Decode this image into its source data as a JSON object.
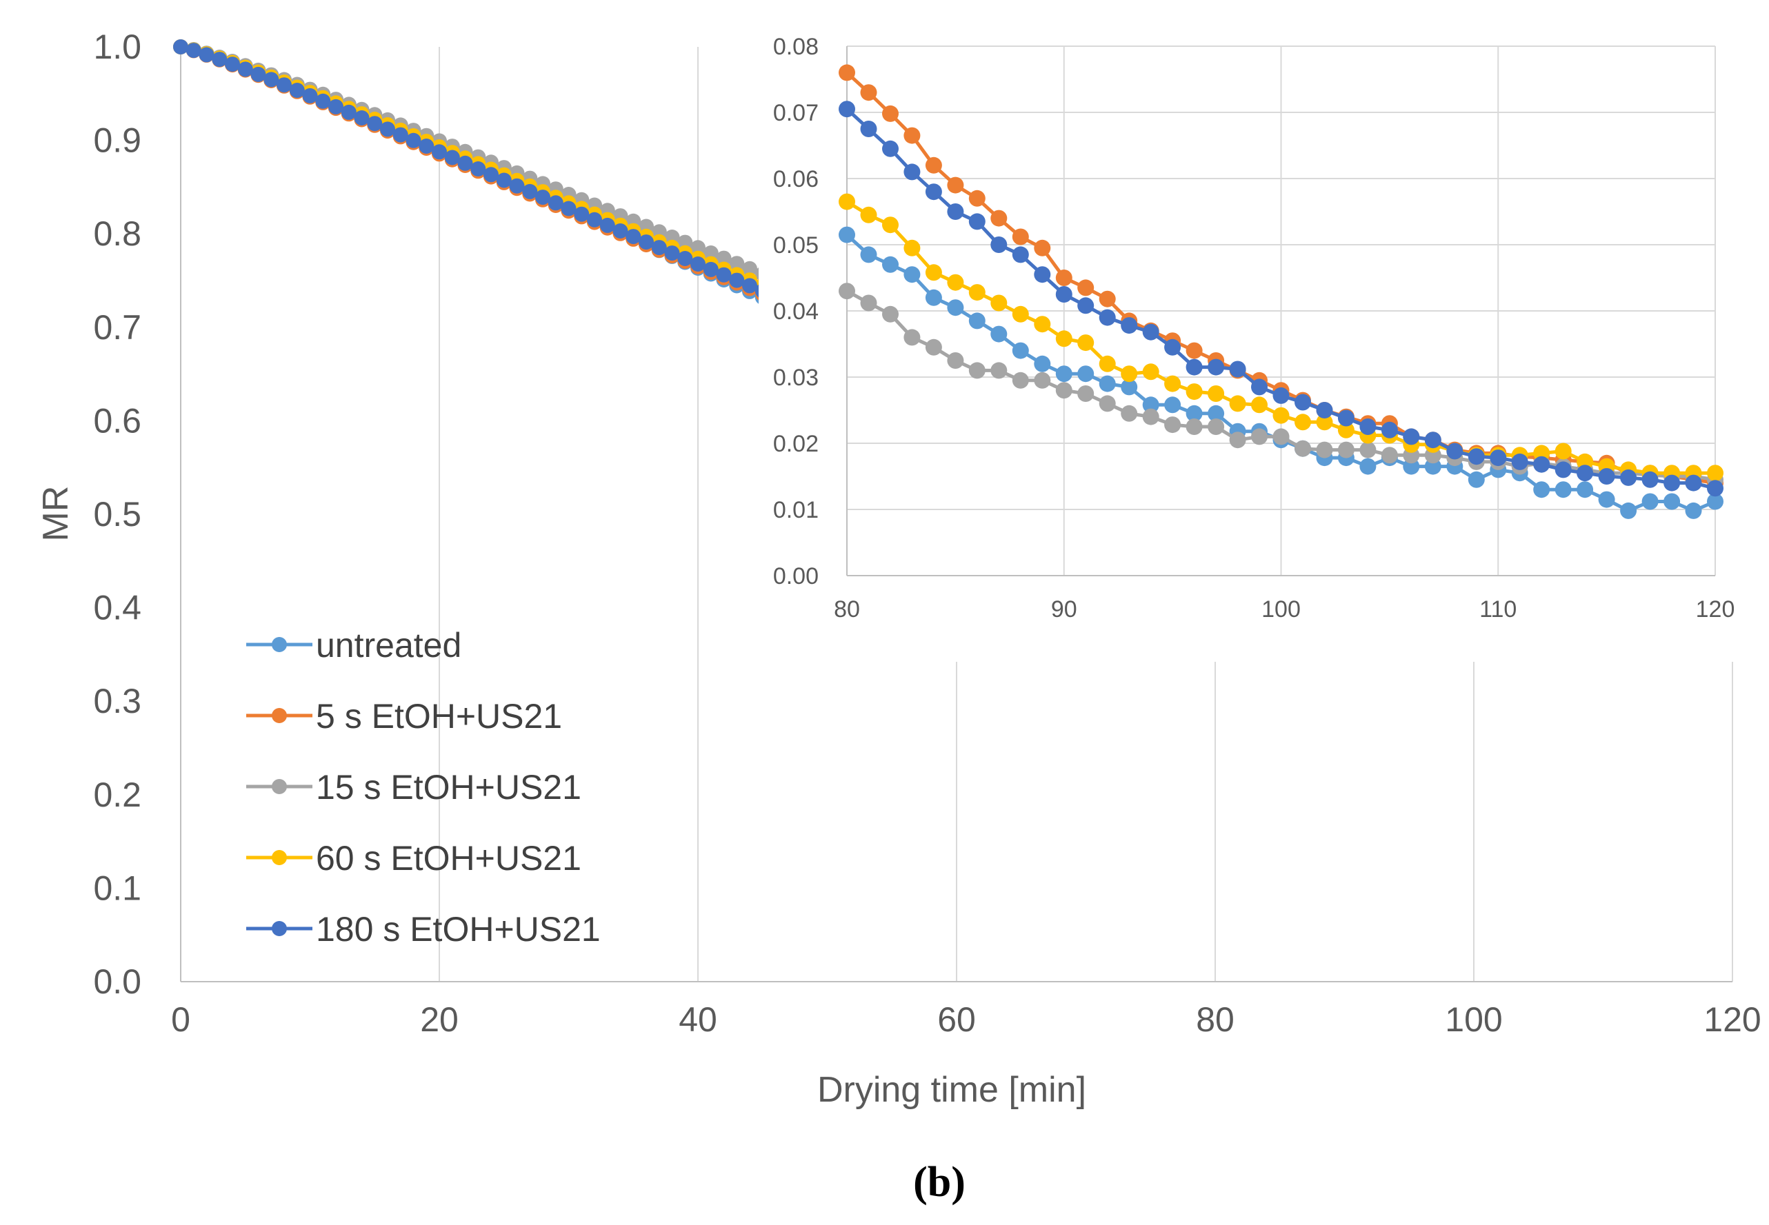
{
  "chart_data": [
    {
      "type": "line",
      "role": "main",
      "title": "",
      "xlabel": "Drying time [min]",
      "ylabel": "MR",
      "xlim": [
        0,
        120
      ],
      "ylim": [
        0,
        1.0
      ],
      "xticks": [
        0,
        20,
        40,
        60,
        80,
        100,
        120
      ],
      "yticks": [
        "0.0",
        "0.1",
        "0.2",
        "0.3",
        "0.4",
        "0.5",
        "0.6",
        "0.7",
        "0.8",
        "0.9",
        "1.0"
      ],
      "grid": "vertical",
      "legend_position": "bottom-left",
      "x": "0 to 120 step 1",
      "series": [
        {
          "name": "untreated",
          "color": "#5B9BD5",
          "model": {
            "a": 0.003,
            "b": 1.22
          }
        },
        {
          "name": "5 s EtOH+US21",
          "color": "#ED7D31",
          "model": {
            "a": 0.004,
            "b": 1.14
          }
        },
        {
          "name": "15 s EtOH+US21",
          "color": "#A5A5A5",
          "model": {
            "a": 0.003,
            "b": 1.19
          }
        },
        {
          "name": "60 s EtOH+US21",
          "color": "#FFC000",
          "model": {
            "a": 0.0033,
            "b": 1.18
          }
        },
        {
          "name": "180 s EtOH+US21",
          "color": "#4472C4",
          "model": {
            "a": 0.0038,
            "b": 1.15
          }
        }
      ]
    },
    {
      "type": "line",
      "role": "inset",
      "title": "",
      "xlim": [
        80,
        120
      ],
      "ylim": [
        0,
        0.08
      ],
      "xticks": [
        80,
        90,
        100,
        110,
        120
      ],
      "yticks": [
        "0.00",
        "0.01",
        "0.02",
        "0.03",
        "0.04",
        "0.05",
        "0.06",
        "0.07",
        "0.08"
      ],
      "grid": "both",
      "x": [
        80,
        81,
        82,
        83,
        84,
        85,
        86,
        87,
        88,
        89,
        90,
        91,
        92,
        93,
        94,
        95,
        96,
        97,
        98,
        99,
        100,
        101,
        102,
        103,
        104,
        105,
        106,
        107,
        108,
        109,
        110,
        111,
        112,
        113,
        114,
        115,
        116,
        117,
        118,
        119,
        120
      ],
      "series": [
        {
          "name": "untreated",
          "color": "#5B9BD5",
          "values": [
            0.0515,
            0.0485,
            0.047,
            0.0455,
            0.042,
            0.0405,
            0.0385,
            0.0365,
            0.034,
            0.032,
            0.0305,
            0.0305,
            0.029,
            0.0285,
            0.0258,
            0.0258,
            0.0245,
            0.0245,
            0.0218,
            0.0218,
            0.0205,
            0.0192,
            0.0178,
            0.0178,
            0.0165,
            0.0178,
            0.0165,
            0.0165,
            0.0165,
            0.0145,
            0.016,
            0.0155,
            0.013,
            0.013,
            0.013,
            0.0115,
            0.0098,
            0.0112,
            0.0112,
            0.0098,
            0.0112
          ]
        },
        {
          "name": "5 s EtOH+US21",
          "color": "#ED7D31",
          "values": [
            0.076,
            0.073,
            0.0698,
            0.0665,
            0.062,
            0.059,
            0.057,
            0.054,
            0.0512,
            0.0495,
            0.045,
            0.0435,
            0.0418,
            0.0385,
            0.037,
            0.0355,
            0.034,
            0.0325,
            0.031,
            0.0295,
            0.028,
            0.0265,
            0.025,
            0.024,
            0.023,
            0.023,
            0.021,
            0.0205,
            0.019,
            0.0185,
            0.0185,
            0.018,
            0.0178,
            0.0175,
            0.0172,
            0.017,
            0.0155,
            0.0155,
            0.015,
            0.0145,
            0.014
          ]
        },
        {
          "name": "15 s EtOH+US21",
          "color": "#A5A5A5",
          "values": [
            0.043,
            0.0412,
            0.0395,
            0.036,
            0.0345,
            0.0325,
            0.031,
            0.031,
            0.0295,
            0.0295,
            0.028,
            0.0275,
            0.026,
            0.0245,
            0.024,
            0.0228,
            0.0225,
            0.0225,
            0.0205,
            0.021,
            0.021,
            0.0192,
            0.019,
            0.019,
            0.019,
            0.0182,
            0.0182,
            0.0182,
            0.0178,
            0.0172,
            0.0172,
            0.0165,
            0.017,
            0.0165,
            0.016,
            0.0155,
            0.0155,
            0.0152,
            0.015,
            0.015,
            0.0145
          ]
        },
        {
          "name": "60 s EtOH+US21",
          "color": "#FFC000",
          "values": [
            0.0565,
            0.0545,
            0.053,
            0.0495,
            0.0458,
            0.0443,
            0.0428,
            0.0412,
            0.0395,
            0.038,
            0.0358,
            0.0352,
            0.032,
            0.0305,
            0.0308,
            0.029,
            0.0278,
            0.0275,
            0.026,
            0.0258,
            0.0242,
            0.0232,
            0.0232,
            0.022,
            0.0212,
            0.0212,
            0.0198,
            0.0198,
            0.0188,
            0.0182,
            0.0182,
            0.0182,
            0.0185,
            0.0188,
            0.0172,
            0.0165,
            0.016,
            0.0155,
            0.0155,
            0.0155,
            0.0155
          ]
        },
        {
          "name": "180 s EtOH+US21",
          "color": "#4472C4",
          "values": [
            0.0705,
            0.0675,
            0.0645,
            0.061,
            0.058,
            0.055,
            0.0535,
            0.05,
            0.0485,
            0.0455,
            0.0425,
            0.0408,
            0.039,
            0.0378,
            0.0368,
            0.0345,
            0.0315,
            0.0315,
            0.0312,
            0.0285,
            0.0272,
            0.0262,
            0.025,
            0.0238,
            0.0225,
            0.022,
            0.021,
            0.0205,
            0.0188,
            0.018,
            0.0178,
            0.0172,
            0.0168,
            0.016,
            0.0155,
            0.015,
            0.0148,
            0.0145,
            0.014,
            0.014,
            0.0132
          ]
        }
      ]
    }
  ],
  "panel_label": "(b)"
}
